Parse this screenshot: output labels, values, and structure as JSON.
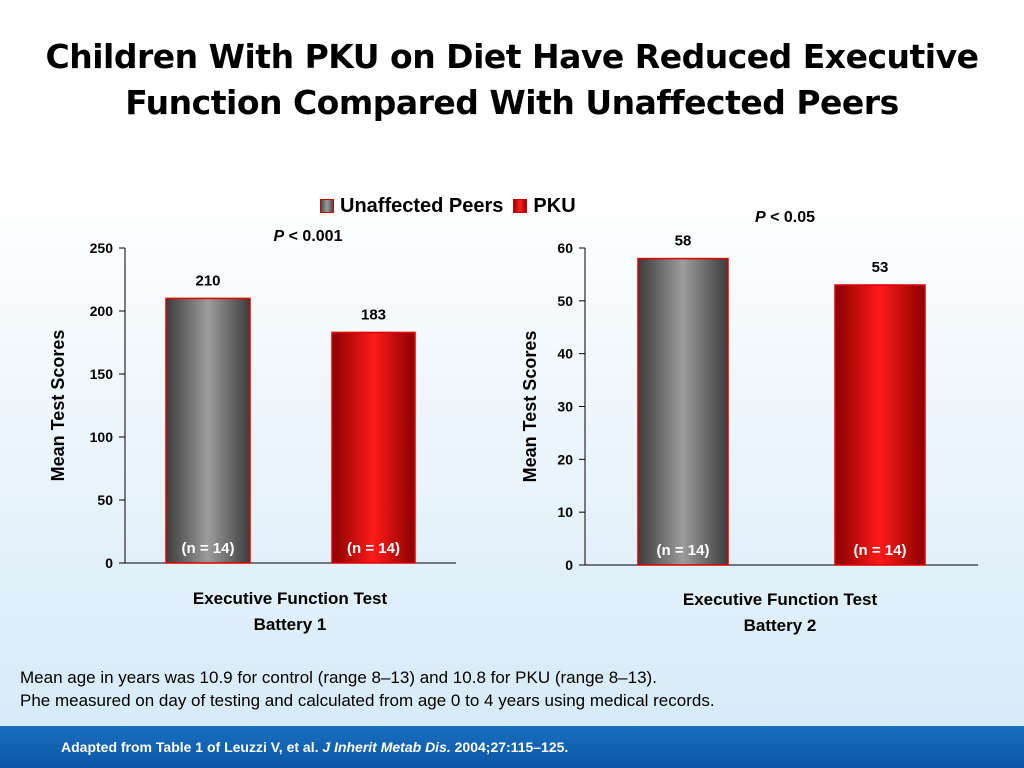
{
  "title_line1": "Children With PKU on Diet Have Reduced Executive",
  "title_line2": "Function Compared With Unaffected Peers",
  "legend": [
    {
      "label": "Unaffected Peers",
      "color": "#6e6e6e"
    },
    {
      "label": "PKU",
      "color": "#e00000"
    }
  ],
  "chart_data": [
    {
      "type": "bar",
      "p_value_label": "P",
      "p_value_text": " < 0.001",
      "categories": [
        "Unaffected Peers",
        "PKU"
      ],
      "values": [
        210,
        183
      ],
      "value_labels": [
        "210",
        "183"
      ],
      "n_labels": [
        "(n = 14)",
        "(n = 14)"
      ],
      "ylabel": "Mean Test Scores",
      "xlabel_line1": "Executive Function Test",
      "xlabel_line2": "Battery 1",
      "ylim": [
        0,
        250
      ],
      "yticks": [
        0,
        50,
        100,
        150,
        200,
        250
      ]
    },
    {
      "type": "bar",
      "p_value_label": "P",
      "p_value_text": " < 0.05",
      "categories": [
        "Unaffected Peers",
        "PKU"
      ],
      "values": [
        58,
        53
      ],
      "value_labels": [
        "58",
        "53"
      ],
      "n_labels": [
        "(n = 14)",
        "(n = 14)"
      ],
      "ylabel": "Mean Test Scores",
      "xlabel_line1": "Executive Function Test",
      "xlabel_line2": "Battery 2",
      "ylim": [
        0,
        60
      ],
      "yticks": [
        0,
        10,
        20,
        30,
        40,
        50,
        60
      ]
    }
  ],
  "footnote_line1": "Mean age in years was 10.9 for control (range 8–13) and 10.8 for PKU (range 8–13).",
  "footnote_line2": "Phe measured on day of testing and calculated from age 0 to 4 years using medical records.",
  "citation_prefix": "Adapted from Table 1 of Leuzzi V, et al. ",
  "citation_journal": "J Inherit Metab Dis.",
  "citation_suffix": " 2004;27:115–125."
}
